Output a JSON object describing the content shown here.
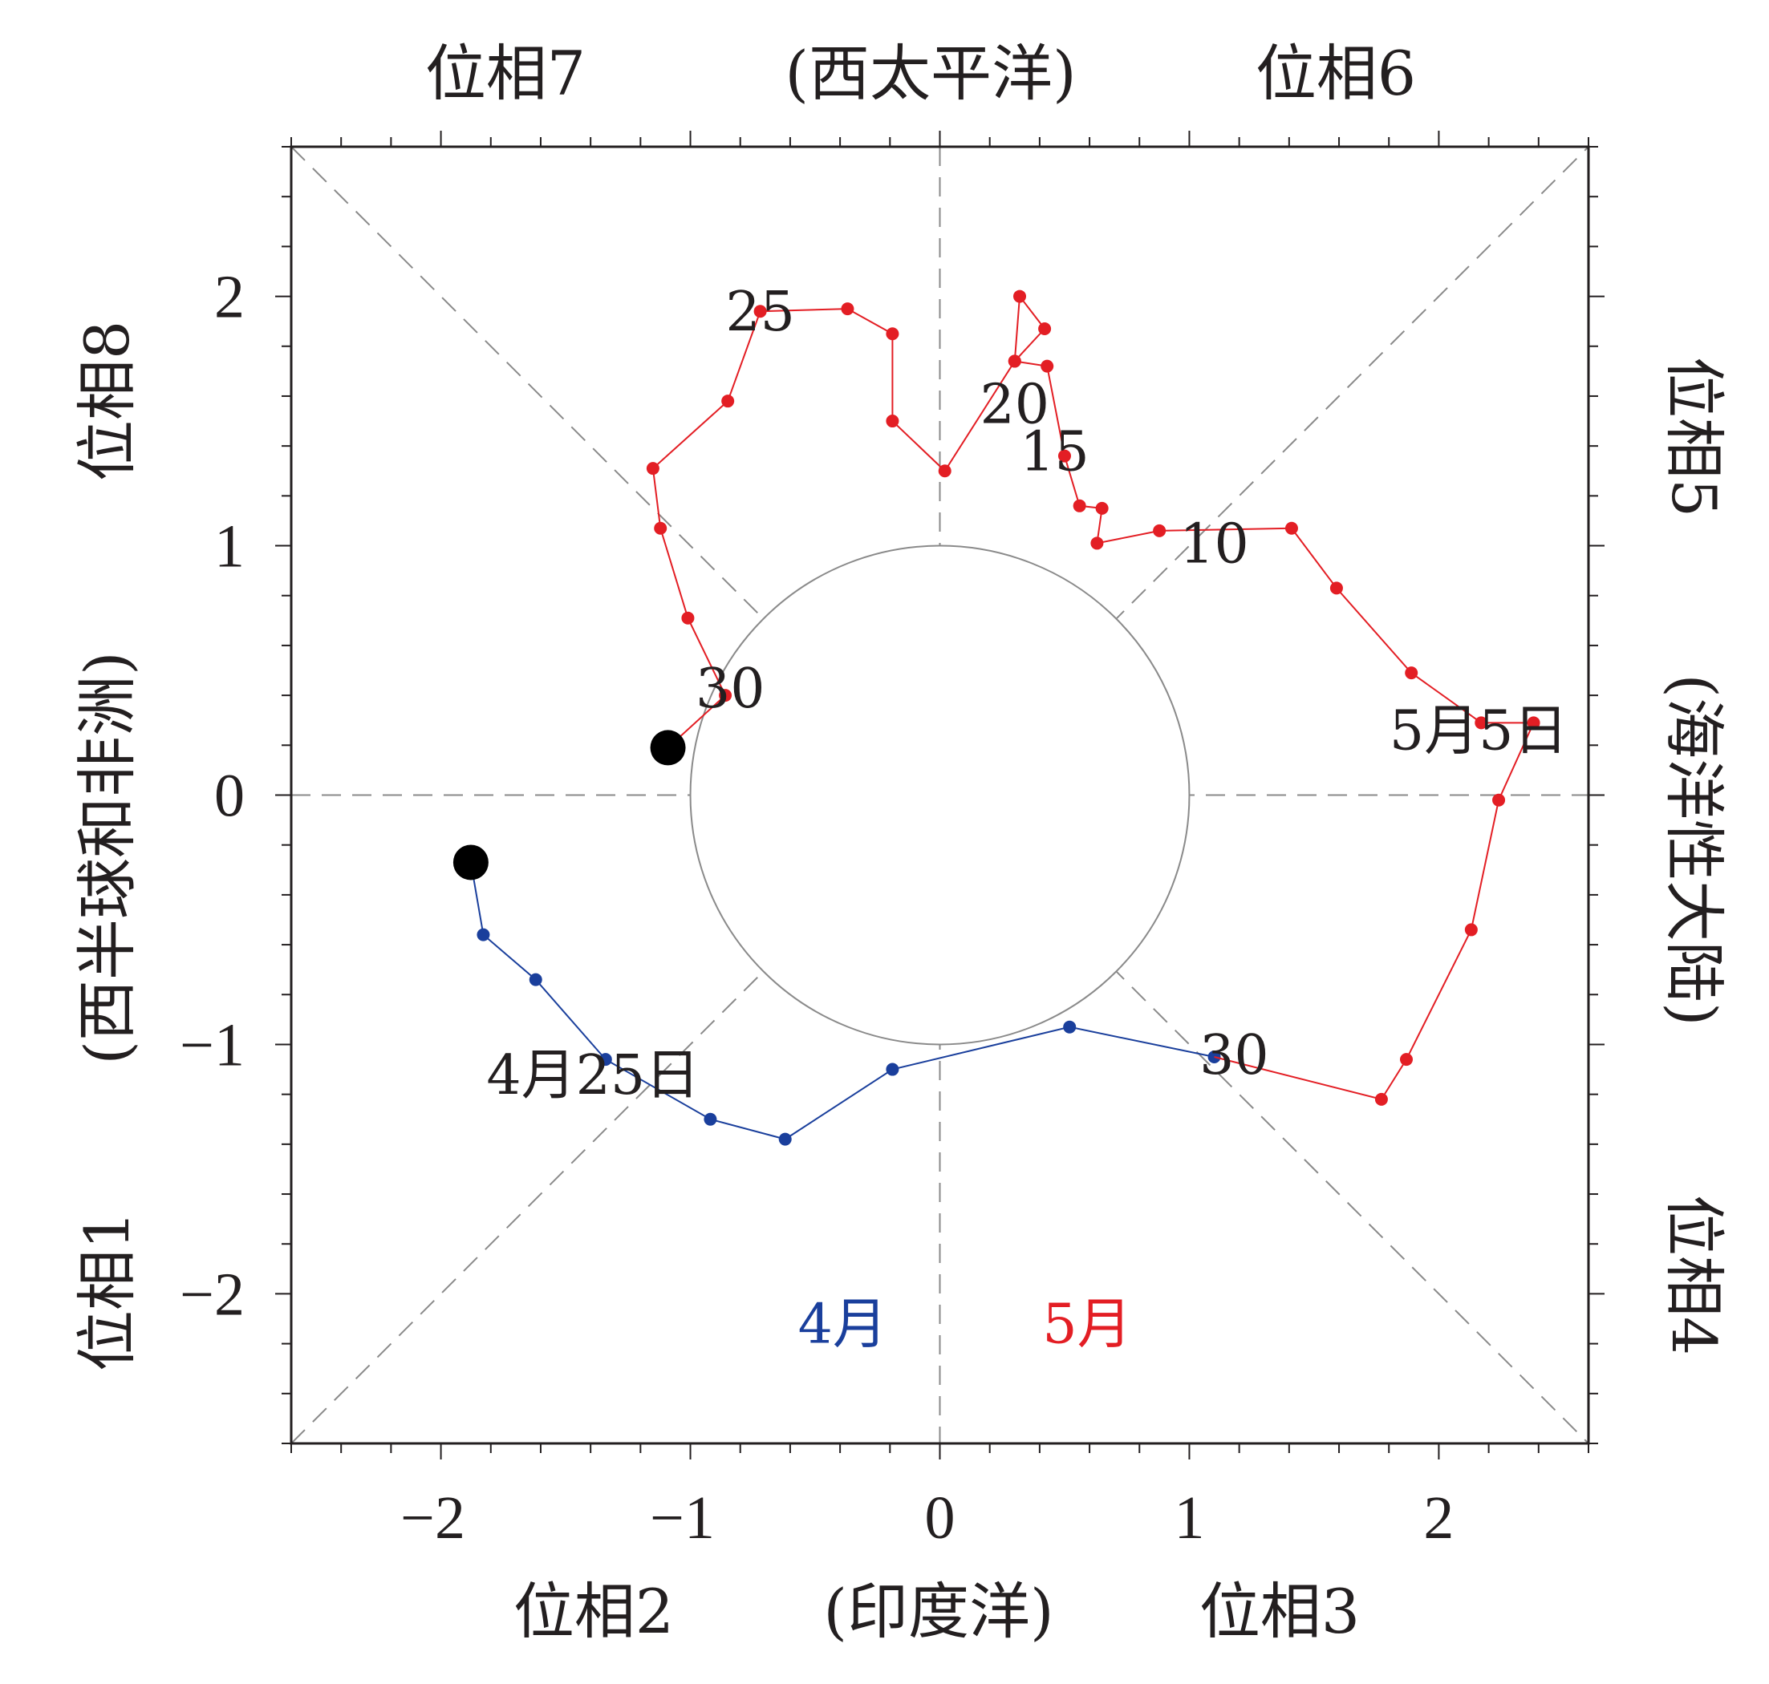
{
  "chart_data": {
    "type": "line",
    "title": "",
    "xlabel": "",
    "ylabel": "",
    "xlim": [
      -2.6,
      2.6
    ],
    "ylim": [
      -2.6,
      2.6
    ],
    "x_ticks": [
      -2,
      -1,
      0,
      1,
      2
    ],
    "y_ticks": [
      -2,
      -1,
      0,
      1,
      2
    ],
    "x_tick_labels": [
      "−2",
      "−1",
      "0",
      "1",
      "2"
    ],
    "y_tick_labels": [
      "−2",
      "−1",
      "0",
      "1",
      "2"
    ],
    "minor_tick_step": 0.2,
    "grid": false,
    "unit_circle_radius": 1,
    "phase_labels": {
      "phase7": "位相7",
      "top_region": "(西太平洋)",
      "phase6": "位相6",
      "phase8": "位相8",
      "left_region": "(西半球和非洲)",
      "phase1": "位相1",
      "phase5": "位相5",
      "right_region": "(海洋性大陆)",
      "phase4": "位相4",
      "phase2": "位相2",
      "bottom_region": "(印度洋)",
      "phase3": "位相3"
    },
    "series": [
      {
        "name": "4月",
        "color": "#1a3f9c",
        "points": [
          [
            -1.88,
            -0.27
          ],
          [
            -1.83,
            -0.56
          ],
          [
            -1.62,
            -0.74
          ],
          [
            -1.34,
            -1.06
          ],
          [
            -0.92,
            -1.3
          ],
          [
            -0.62,
            -1.38
          ],
          [
            -0.19,
            -1.1
          ],
          [
            0.52,
            -0.93
          ],
          [
            1.1,
            -1.05
          ]
        ]
      },
      {
        "name": "5月",
        "color": "#e31e24",
        "points": [
          [
            1.1,
            -1.05
          ],
          [
            1.77,
            -1.22
          ],
          [
            1.87,
            -1.06
          ],
          [
            2.13,
            -0.54
          ],
          [
            2.24,
            -0.02
          ],
          [
            2.38,
            0.29
          ],
          [
            2.17,
            0.29
          ],
          [
            1.89,
            0.49
          ],
          [
            1.59,
            0.83
          ],
          [
            1.41,
            1.07
          ],
          [
            0.88,
            1.06
          ],
          [
            0.63,
            1.01
          ],
          [
            0.65,
            1.15
          ],
          [
            0.56,
            1.16
          ],
          [
            0.5,
            1.36
          ],
          [
            0.43,
            1.72
          ],
          [
            0.3,
            1.74
          ],
          [
            0.42,
            1.87
          ],
          [
            0.32,
            2.0
          ],
          [
            0.3,
            1.74
          ],
          [
            0.02,
            1.3
          ],
          [
            -0.19,
            1.5
          ],
          [
            -0.19,
            1.85
          ],
          [
            -0.37,
            1.95
          ],
          [
            -0.72,
            1.94
          ],
          [
            -0.85,
            1.58
          ],
          [
            -1.15,
            1.31
          ],
          [
            -1.12,
            1.07
          ],
          [
            -1.01,
            0.71
          ],
          [
            -0.86,
            0.4
          ],
          [
            -1.09,
            0.19
          ]
        ]
      }
    ],
    "start_markers": [
      [
        -1.88,
        -0.27
      ],
      [
        -1.09,
        0.19
      ]
    ],
    "annotations": [
      {
        "text": "25",
        "x": -0.72,
        "y": 1.94,
        "color": "#231f20"
      },
      {
        "text": "20",
        "x": 0.3,
        "y": 1.57,
        "color": "#231f20"
      },
      {
        "text": "15",
        "x": 0.46,
        "y": 1.38,
        "color": "#231f20"
      },
      {
        "text": "10",
        "x": 1.1,
        "y": 1.01,
        "color": "#231f20"
      },
      {
        "text": "30",
        "x": -0.84,
        "y": 0.43,
        "color": "#231f20"
      },
      {
        "text": "5月5日",
        "x": 2.16,
        "y": 0.26,
        "color": "#231f20"
      },
      {
        "text": "30",
        "x": 1.18,
        "y": -1.04,
        "color": "#231f20"
      },
      {
        "text": "4月25日",
        "x": -1.39,
        "y": -1.12,
        "color": "#231f20"
      },
      {
        "text": "4月",
        "x": -0.39,
        "y": -2.12,
        "color": "#1a3f9c"
      },
      {
        "text": "5月",
        "x": 0.59,
        "y": -2.12,
        "color": "#e31e24"
      }
    ]
  }
}
